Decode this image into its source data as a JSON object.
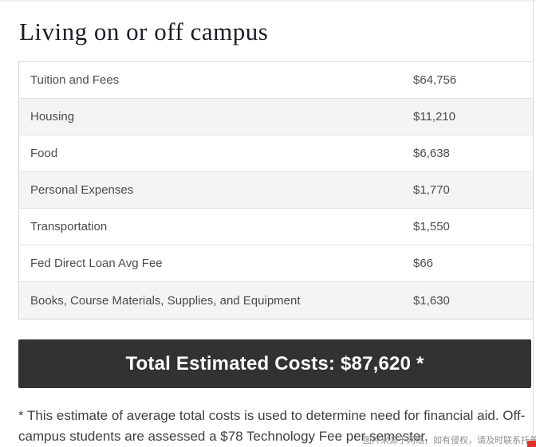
{
  "page": {
    "title": "Living on or off campus"
  },
  "table": {
    "rows": [
      {
        "label": "Tuition and Fees",
        "amount": "$64,756",
        "shaded": false
      },
      {
        "label": "Housing",
        "amount": "$11,210",
        "shaded": true
      },
      {
        "label": "Food",
        "amount": "$6,638",
        "shaded": false
      },
      {
        "label": "Personal Expenses",
        "amount": "$1,770",
        "shaded": true
      },
      {
        "label": "Transportation",
        "amount": "$1,550",
        "shaded": false
      },
      {
        "label": "Fed Direct Loan Avg Fee",
        "amount": "$66",
        "shaded": false
      },
      {
        "label": "Books, Course Materials, Supplies, and Equipment",
        "amount": "$1,630",
        "shaded": true
      }
    ]
  },
  "total_banner": {
    "text": "Total Estimated Costs: $87,620 *"
  },
  "footnote": {
    "text": "* This estimate of average total costs is used to determine need for financial aid. Off-campus students are assessed a $78 Technology Fee per semester."
  },
  "watermark": {
    "text": "图片来源于网络，如有侵权，请及时联系托普仕留学删除"
  },
  "colors": {
    "title_text": "#1c1b22",
    "row_text": "#4b4b4b",
    "row_shade": "#f4f4f4",
    "table_border": "#d9d9d9",
    "banner_background": "#333132",
    "banner_text": "#ffffff",
    "watermark_text": "#8f8f8f",
    "corner_mark_red": "#e53126"
  }
}
